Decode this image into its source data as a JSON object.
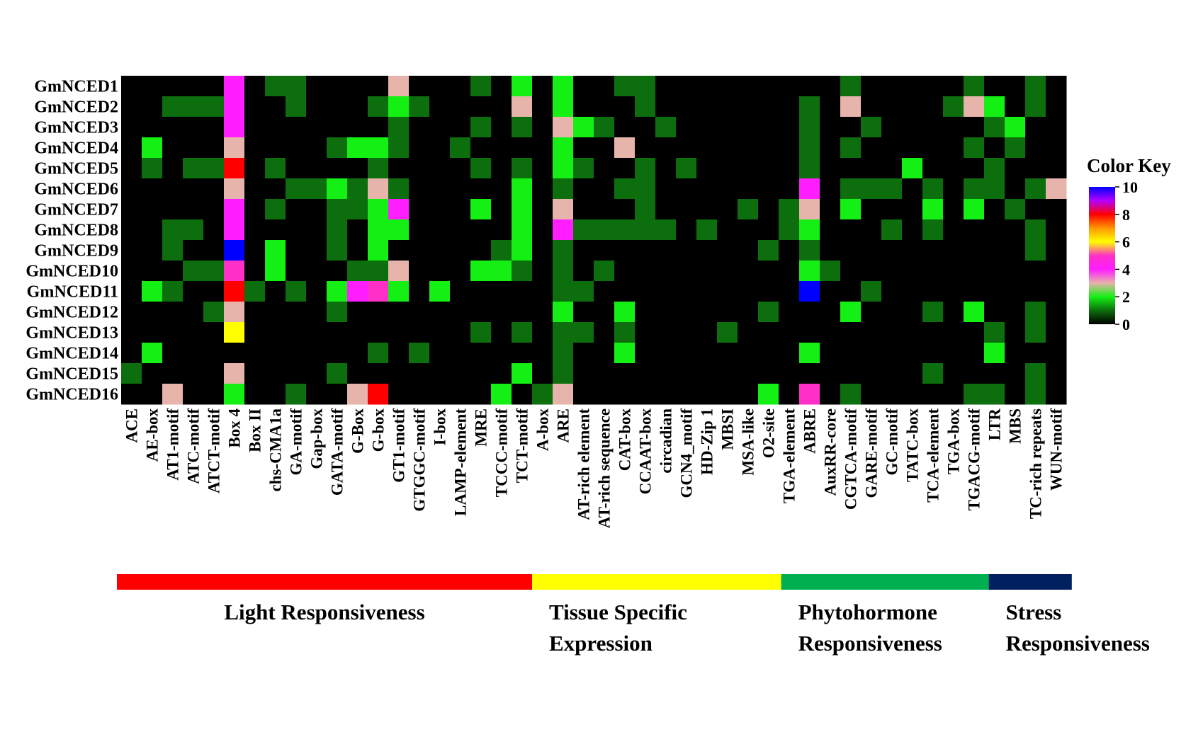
{
  "chart_data": {
    "type": "heatmap",
    "rows": [
      "GmNCED1",
      "GmNCED2",
      "GmNCED3",
      "GmNCED4",
      "GmNCED5",
      "GmNCED6",
      "GmNCED7",
      "GmNCED8",
      "GmNCED9",
      "GmNCED10",
      "GmNCED11",
      "GmNCED12",
      "GmNCED13",
      "GmNCED14",
      "GmNCED15",
      "GmNCED16"
    ],
    "columns": [
      "ACE",
      "AE-box",
      "AT1-motif",
      "ATC-motif",
      "ATCT-motif",
      "Box 4",
      "Box II",
      "chs-CMA1a",
      "GA-motif",
      "Gap-box",
      "GATA-motif",
      "G-Box",
      "G-box",
      "GT1-motif",
      "GTGGC-motif",
      "I-box",
      "LAMP-element",
      "MRE",
      "TCCC-motif",
      "TCT-motif",
      "A-box",
      "ARE",
      "AT-rich element",
      "AT-rich sequence",
      "CAT-box",
      "CCAAT-box",
      "circadian",
      "GCN4_motif",
      "HD-Zip 1",
      "MBSI",
      "MSA-like",
      "O2-site",
      "TGA-element",
      "ABRE",
      "AuxRR-core",
      "CGTCA-motif",
      "GARE-motif",
      "GC-motif",
      "TATC-box",
      "TCA-element",
      "TGA-box",
      "TGACG-motif",
      "LTR",
      "MBS",
      "TC-rich repeats",
      "WUN-motif"
    ],
    "values": [
      [
        0,
        0,
        0,
        0,
        0,
        4,
        0,
        1,
        1,
        0,
        0,
        0,
        0,
        3,
        0,
        0,
        0,
        1,
        0,
        2,
        0,
        2,
        0,
        0,
        1,
        1,
        0,
        0,
        0,
        0,
        0,
        0,
        0,
        0,
        0,
        1,
        0,
        0,
        0,
        0,
        0,
        1,
        0,
        0,
        1,
        0
      ],
      [
        0,
        0,
        1,
        1,
        1,
        4,
        0,
        0,
        1,
        0,
        0,
        0,
        1,
        2,
        1,
        0,
        0,
        0,
        0,
        3,
        0,
        2,
        0,
        0,
        0,
        1,
        0,
        0,
        0,
        0,
        0,
        0,
        0,
        1,
        0,
        3,
        0,
        0,
        0,
        0,
        1,
        3,
        2,
        0,
        1,
        0
      ],
      [
        0,
        0,
        0,
        0,
        0,
        4,
        0,
        0,
        0,
        0,
        0,
        0,
        0,
        1,
        0,
        0,
        0,
        1,
        0,
        1,
        0,
        3,
        2,
        1,
        0,
        0,
        1,
        0,
        0,
        0,
        0,
        0,
        0,
        1,
        0,
        0,
        1,
        0,
        0,
        0,
        0,
        0,
        1,
        2,
        0,
        0
      ],
      [
        0,
        2,
        0,
        0,
        0,
        3,
        0,
        0,
        0,
        0,
        1,
        2,
        2,
        1,
        0,
        0,
        1,
        0,
        0,
        0,
        0,
        2,
        0,
        0,
        3,
        0,
        0,
        0,
        0,
        0,
        0,
        0,
        0,
        1,
        0,
        1,
        0,
        0,
        0,
        0,
        0,
        1,
        0,
        1,
        0,
        0
      ],
      [
        0,
        1,
        0,
        1,
        1,
        8,
        0,
        1,
        0,
        0,
        0,
        0,
        1,
        0,
        0,
        0,
        0,
        1,
        0,
        1,
        0,
        2,
        1,
        0,
        0,
        1,
        0,
        1,
        0,
        0,
        0,
        0,
        0,
        1,
        0,
        0,
        0,
        0,
        2,
        0,
        0,
        0,
        1,
        0,
        0,
        0
      ],
      [
        0,
        0,
        0,
        0,
        0,
        3,
        0,
        0,
        1,
        1,
        2,
        1,
        3,
        1,
        0,
        0,
        0,
        0,
        0,
        2,
        0,
        1,
        0,
        0,
        1,
        1,
        0,
        0,
        0,
        0,
        0,
        0,
        0,
        4,
        0,
        1,
        1,
        1,
        0,
        1,
        0,
        1,
        1,
        0,
        1,
        3
      ],
      [
        0,
        0,
        0,
        0,
        0,
        4,
        0,
        1,
        0,
        0,
        1,
        1,
        2,
        4,
        0,
        0,
        0,
        2,
        0,
        2,
        0,
        3,
        0,
        0,
        0,
        1,
        0,
        0,
        0,
        0,
        1,
        0,
        1,
        3,
        0,
        2,
        0,
        0,
        0,
        2,
        0,
        2,
        0,
        1,
        0,
        0
      ],
      [
        0,
        0,
        1,
        1,
        0,
        4,
        0,
        0,
        0,
        0,
        1,
        0,
        2,
        2,
        0,
        0,
        0,
        0,
        0,
        2,
        0,
        4,
        1,
        1,
        1,
        1,
        1,
        0,
        1,
        0,
        0,
        0,
        1,
        2,
        0,
        0,
        0,
        1,
        0,
        1,
        0,
        0,
        0,
        0,
        1,
        0
      ],
      [
        0,
        0,
        1,
        0,
        0,
        10,
        0,
        2,
        0,
        0,
        1,
        0,
        2,
        0,
        0,
        0,
        0,
        0,
        1,
        2,
        0,
        1,
        0,
        0,
        0,
        0,
        0,
        0,
        0,
        0,
        0,
        1,
        0,
        1,
        0,
        0,
        0,
        0,
        0,
        0,
        0,
        0,
        0,
        0,
        1,
        0
      ],
      [
        0,
        0,
        0,
        1,
        1,
        5,
        0,
        2,
        0,
        0,
        0,
        1,
        1,
        3,
        0,
        0,
        0,
        2,
        2,
        1,
        0,
        1,
        0,
        1,
        0,
        0,
        0,
        0,
        0,
        0,
        0,
        0,
        0,
        2,
        1,
        0,
        0,
        0,
        0,
        0,
        0,
        0,
        0,
        0,
        0,
        0
      ],
      [
        0,
        2,
        1,
        0,
        0,
        8,
        1,
        0,
        1,
        0,
        2,
        4,
        5,
        2,
        0,
        2,
        0,
        0,
        0,
        0,
        0,
        1,
        1,
        0,
        0,
        0,
        0,
        0,
        0,
        0,
        0,
        0,
        0,
        10,
        0,
        0,
        1,
        0,
        0,
        0,
        0,
        0,
        0,
        0,
        0,
        0
      ],
      [
        0,
        0,
        0,
        0,
        1,
        3,
        0,
        0,
        0,
        0,
        1,
        0,
        0,
        0,
        0,
        0,
        0,
        0,
        0,
        0,
        0,
        2,
        0,
        0,
        2,
        0,
        0,
        0,
        0,
        0,
        0,
        1,
        0,
        0,
        0,
        2,
        0,
        0,
        0,
        1,
        0,
        2,
        0,
        0,
        1,
        0
      ],
      [
        0,
        0,
        0,
        0,
        0,
        6,
        0,
        0,
        0,
        0,
        0,
        0,
        0,
        0,
        0,
        0,
        0,
        1,
        0,
        1,
        0,
        1,
        1,
        0,
        1,
        0,
        0,
        0,
        0,
        1,
        0,
        0,
        0,
        0,
        0,
        0,
        0,
        0,
        0,
        0,
        0,
        0,
        1,
        0,
        1,
        0
      ],
      [
        0,
        2,
        0,
        0,
        0,
        0,
        0,
        0,
        0,
        0,
        0,
        0,
        1,
        0,
        1,
        0,
        0,
        0,
        0,
        0,
        0,
        1,
        0,
        0,
        2,
        0,
        0,
        0,
        0,
        0,
        0,
        0,
        0,
        2,
        0,
        0,
        0,
        0,
        0,
        0,
        0,
        0,
        2,
        0,
        0,
        0
      ],
      [
        1,
        0,
        0,
        0,
        0,
        3,
        0,
        0,
        0,
        0,
        1,
        0,
        0,
        0,
        0,
        0,
        0,
        0,
        0,
        2,
        0,
        1,
        0,
        0,
        0,
        0,
        0,
        0,
        0,
        0,
        0,
        0,
        0,
        0,
        0,
        0,
        0,
        0,
        0,
        1,
        0,
        0,
        0,
        0,
        1,
        0
      ],
      [
        0,
        0,
        3,
        0,
        0,
        2,
        0,
        0,
        1,
        0,
        0,
        3,
        8,
        0,
        0,
        0,
        0,
        0,
        2,
        0,
        1,
        3,
        0,
        0,
        0,
        0,
        0,
        0,
        0,
        0,
        0,
        2,
        0,
        5,
        0,
        1,
        0,
        0,
        0,
        0,
        0,
        1,
        1,
        0,
        1,
        0
      ]
    ],
    "color_key": {
      "title": "Color Key",
      "ticks": [
        "0",
        "2",
        "4",
        "6",
        "8",
        "10"
      ],
      "min": 0,
      "max": 10,
      "stops": [
        {
          "v": 0,
          "color": "#000000"
        },
        {
          "v": 1,
          "color": "#0c6e0c"
        },
        {
          "v": 2,
          "color": "#14f014"
        },
        {
          "v": 3,
          "color": "#e6b4aa"
        },
        {
          "v": 4,
          "color": "#ff1eff"
        },
        {
          "v": 5,
          "color": "#ff30c8"
        },
        {
          "v": 6,
          "color": "#ffff00"
        },
        {
          "v": 7,
          "color": "#ff9600"
        },
        {
          "v": 8,
          "color": "#ff0000"
        },
        {
          "v": 9,
          "color": "#b400ff"
        },
        {
          "v": 10,
          "color": "#0000ff"
        }
      ]
    },
    "groups": [
      {
        "label_lines": [
          "Light Responsiveness"
        ],
        "start": 0,
        "end": 19,
        "color": "#ff0000"
      },
      {
        "label_lines": [
          "Tissue Specific",
          "Expression"
        ],
        "start": 20,
        "end": 31,
        "color": "#ffff00"
      },
      {
        "label_lines": [
          "Phytohormone",
          "Responsiveness"
        ],
        "start": 32,
        "end": 41,
        "color": "#00b050"
      },
      {
        "label_lines": [
          "Stress",
          "Responsiveness"
        ],
        "start": 42,
        "end": 45,
        "color": "#002060"
      }
    ]
  }
}
